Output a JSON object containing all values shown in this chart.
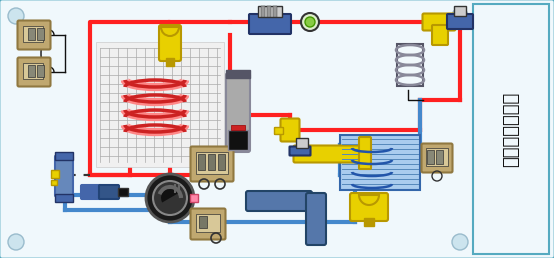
{
  "title": "制冷系统示意图",
  "bg_color": "#ddeef5",
  "border_color": "#55aac0",
  "panel_bg": "#f0f8fc",
  "red": "#ff2020",
  "blue": "#4488cc",
  "lt_blue": "#88bbee",
  "yellow": "#e8d000",
  "dk_yellow": "#b89800",
  "blue_comp": "#4466aa",
  "gray": "#888888",
  "dk_gray": "#333333",
  "tan": "#c0a870",
  "dk_tan": "#907840",
  "black": "#111111",
  "white": "#ffffff",
  "evap_blue": "#aaccee",
  "steel": "#888899",
  "steel_dk": "#555566",
  "lw": 3.0,
  "figsize": [
    5.54,
    2.58
  ],
  "dpi": 100
}
